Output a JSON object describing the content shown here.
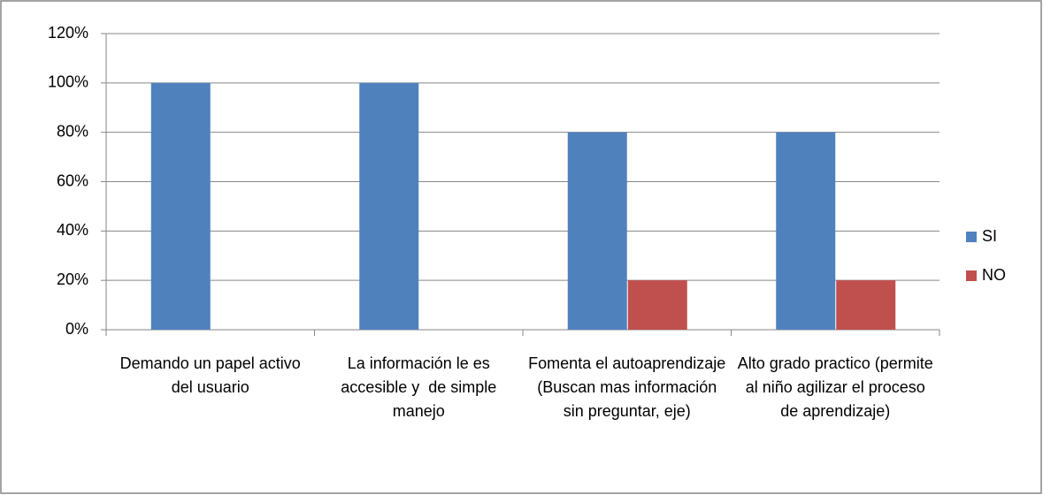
{
  "chart_data": {
    "type": "bar",
    "categories": [
      "Demando un papel activo del usuario",
      "La información le es accesible y  de simple manejo",
      "Fomenta el autoaprendizaje (Buscan mas información sin preguntar, eje)",
      "Alto grado practico (permite al niño agilizar el proceso de aprendizaje)"
    ],
    "series": [
      {
        "name": "SI",
        "color": "#4f81bd",
        "values": [
          100,
          100,
          80,
          80
        ]
      },
      {
        "name": "NO",
        "color": "#c0504d",
        "values": [
          0,
          0,
          20,
          20
        ]
      }
    ],
    "ylim": [
      0,
      120
    ],
    "yticks": [
      {
        "value": 0,
        "label": "0%"
      },
      {
        "value": 20,
        "label": "20%"
      },
      {
        "value": 40,
        "label": "40%"
      },
      {
        "value": 60,
        "label": "60%"
      },
      {
        "value": 80,
        "label": "80%"
      },
      {
        "value": 100,
        "label": "100%"
      },
      {
        "value": 120,
        "label": "120%"
      }
    ],
    "grid": true,
    "legend": "right"
  }
}
